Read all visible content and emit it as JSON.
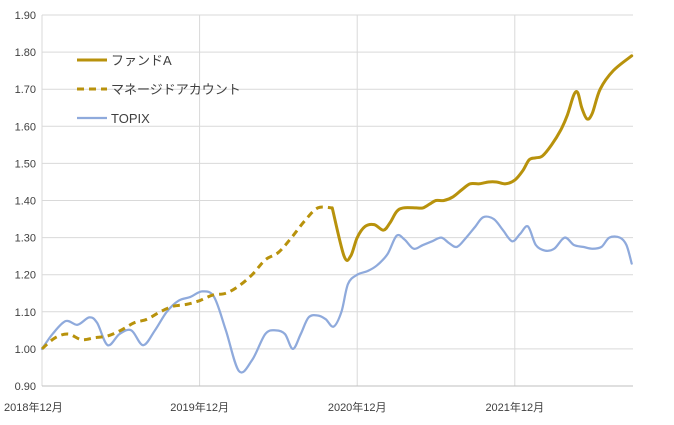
{
  "chart_data": {
    "type": "line",
    "title": "",
    "xlabel": "",
    "ylabel": "",
    "ylim": [
      0.9,
      1.9
    ],
    "y_ticks": [
      "0.90",
      "1.00",
      "1.10",
      "1.20",
      "1.30",
      "1.40",
      "1.50",
      "1.60",
      "1.70",
      "1.80",
      "1.90"
    ],
    "x_ticks": [
      {
        "label": "2018年12月",
        "t": 0
      },
      {
        "label": "2019年12月",
        "t": 12
      },
      {
        "label": "2020年12月",
        "t": 24
      },
      {
        "label": "2021年12月",
        "t": 36
      }
    ],
    "x_range": [
      0,
      45
    ],
    "grid": {
      "vertical": true,
      "horizontal": true
    },
    "legend": {
      "placement": "top-left"
    },
    "series": [
      {
        "name": "ファンドA",
        "color": "#b8920c",
        "dash": "solid",
        "points": [
          [
            22.1,
            1.38
          ],
          [
            23,
            1.25
          ],
          [
            23.5,
            1.25
          ],
          [
            24,
            1.3
          ],
          [
            24.6,
            1.33
          ],
          [
            25.3,
            1.335
          ],
          [
            26,
            1.32
          ],
          [
            26.5,
            1.34
          ],
          [
            27,
            1.37
          ],
          [
            27.5,
            1.38
          ],
          [
            28.5,
            1.38
          ],
          [
            29,
            1.38
          ],
          [
            29.5,
            1.39
          ],
          [
            30,
            1.4
          ],
          [
            30.6,
            1.4
          ],
          [
            31.3,
            1.41
          ],
          [
            32,
            1.43
          ],
          [
            32.6,
            1.445
          ],
          [
            33.3,
            1.445
          ],
          [
            34,
            1.45
          ],
          [
            34.6,
            1.45
          ],
          [
            35.3,
            1.445
          ],
          [
            36,
            1.455
          ],
          [
            36.6,
            1.48
          ],
          [
            37.1,
            1.51
          ],
          [
            37.6,
            1.515
          ],
          [
            38.1,
            1.52
          ],
          [
            38.8,
            1.55
          ],
          [
            39.5,
            1.59
          ],
          [
            40,
            1.63
          ],
          [
            40.5,
            1.685
          ],
          [
            40.8,
            1.69
          ],
          [
            41.1,
            1.65
          ],
          [
            41.5,
            1.62
          ],
          [
            41.9,
            1.635
          ],
          [
            42.5,
            1.7
          ],
          [
            43.5,
            1.75
          ],
          [
            44.9,
            1.79
          ]
        ]
      },
      {
        "name": "マネージドアカウント",
        "color": "#b8920c",
        "dash": "dashed",
        "points": [
          [
            0,
            1.0
          ],
          [
            1,
            1.03
          ],
          [
            2,
            1.04
          ],
          [
            3,
            1.025
          ],
          [
            4,
            1.03
          ],
          [
            5,
            1.035
          ],
          [
            6,
            1.05
          ],
          [
            7,
            1.07
          ],
          [
            8,
            1.08
          ],
          [
            9,
            1.1
          ],
          [
            10,
            1.115
          ],
          [
            11,
            1.12
          ],
          [
            12,
            1.13
          ],
          [
            13,
            1.145
          ],
          [
            14,
            1.15
          ],
          [
            15,
            1.17
          ],
          [
            16,
            1.2
          ],
          [
            17,
            1.24
          ],
          [
            18,
            1.26
          ],
          [
            19,
            1.3
          ],
          [
            20,
            1.345
          ],
          [
            21,
            1.38
          ],
          [
            22.1,
            1.38
          ]
        ]
      },
      {
        "name": "TOPIX",
        "color": "#8faadc",
        "dash": "solid",
        "points": [
          [
            0,
            1.0
          ],
          [
            0.8,
            1.04
          ],
          [
            1.8,
            1.075
          ],
          [
            2.7,
            1.065
          ],
          [
            3.6,
            1.085
          ],
          [
            4.2,
            1.07
          ],
          [
            5,
            1.01
          ],
          [
            5.9,
            1.04
          ],
          [
            6.8,
            1.05
          ],
          [
            7.7,
            1.01
          ],
          [
            8.6,
            1.05
          ],
          [
            9.5,
            1.1
          ],
          [
            10.4,
            1.13
          ],
          [
            11.3,
            1.14
          ],
          [
            12.2,
            1.155
          ],
          [
            13.1,
            1.14
          ],
          [
            14,
            1.05
          ],
          [
            15,
            0.94
          ],
          [
            16,
            0.97
          ],
          [
            17,
            1.04
          ],
          [
            17.8,
            1.05
          ],
          [
            18.5,
            1.04
          ],
          [
            19.1,
            1.0
          ],
          [
            19.7,
            1.04
          ],
          [
            20.3,
            1.085
          ],
          [
            21,
            1.09
          ],
          [
            21.6,
            1.08
          ],
          [
            22.2,
            1.06
          ],
          [
            22.8,
            1.1
          ],
          [
            23.3,
            1.175
          ],
          [
            24,
            1.2
          ],
          [
            24.8,
            1.21
          ],
          [
            25.5,
            1.225
          ],
          [
            26.3,
            1.255
          ],
          [
            27,
            1.305
          ],
          [
            27.6,
            1.295
          ],
          [
            28.3,
            1.27
          ],
          [
            29,
            1.28
          ],
          [
            29.7,
            1.29
          ],
          [
            30.4,
            1.3
          ],
          [
            31,
            1.285
          ],
          [
            31.6,
            1.275
          ],
          [
            32.3,
            1.3
          ],
          [
            33,
            1.33
          ],
          [
            33.6,
            1.355
          ],
          [
            34.4,
            1.35
          ],
          [
            35.1,
            1.32
          ],
          [
            35.8,
            1.29
          ],
          [
            36.4,
            1.31
          ],
          [
            37,
            1.33
          ],
          [
            37.6,
            1.28
          ],
          [
            38.3,
            1.265
          ],
          [
            39,
            1.27
          ],
          [
            39.8,
            1.3
          ],
          [
            40.5,
            1.28
          ],
          [
            41.2,
            1.275
          ],
          [
            41.9,
            1.27
          ],
          [
            42.6,
            1.275
          ],
          [
            43.2,
            1.3
          ],
          [
            44,
            1.3
          ],
          [
            44.5,
            1.28
          ],
          [
            44.9,
            1.23
          ]
        ]
      }
    ]
  }
}
